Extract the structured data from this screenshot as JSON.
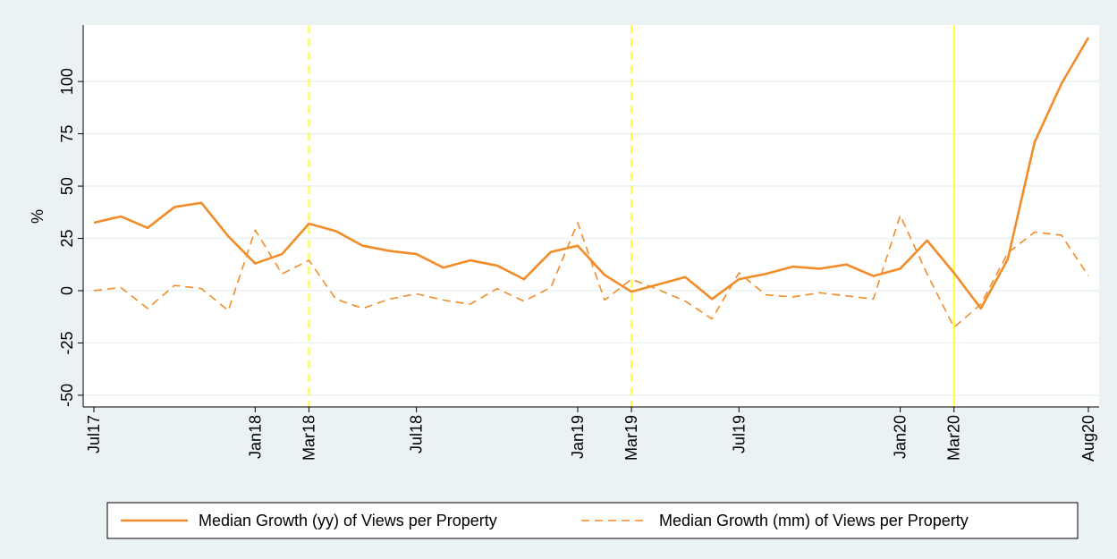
{
  "chart_data": {
    "type": "line",
    "y_label": "%",
    "categories": [
      "Jul17",
      null,
      null,
      null,
      null,
      null,
      "Jan18",
      null,
      "Mar18",
      null,
      null,
      null,
      "Jul18",
      null,
      null,
      null,
      null,
      null,
      "Jan19",
      null,
      "Mar19",
      null,
      null,
      null,
      "Jul19",
      null,
      null,
      null,
      null,
      null,
      "Jan20",
      null,
      "Mar20",
      null,
      null,
      null,
      null,
      "Aug20"
    ],
    "series": [
      {
        "name": "Median Growth (yy) of Views per Property",
        "color": "#f28c28",
        "dash": false,
        "values": [
          32.5,
          35.5,
          30,
          40,
          42,
          26,
          13,
          17.5,
          32,
          28.5,
          21.5,
          19,
          17.5,
          11,
          14.5,
          12,
          5.5,
          18.5,
          21.5,
          7.5,
          -0.5,
          3,
          6.5,
          -4,
          5.5,
          8,
          11.5,
          10.5,
          12.5,
          7,
          10.5,
          24,
          8.5,
          -8.5,
          15,
          71,
          99,
          121
        ]
      },
      {
        "name": "Median Growth (mm) of Views per Property",
        "color": "#f28c28",
        "dash": true,
        "values": [
          0,
          1.5,
          -8.5,
          2.5,
          1,
          -9.5,
          29,
          8,
          14.5,
          -4,
          -8.5,
          -4,
          -1.5,
          -4.5,
          -6.5,
          1,
          -5,
          1.5,
          32.5,
          -4.5,
          5.5,
          0.5,
          -5,
          -13.5,
          8.5,
          -2,
          -3,
          -1,
          -2.5,
          -4,
          36,
          8,
          -17.5,
          -6.5,
          18,
          28,
          26.5,
          7
        ]
      }
    ],
    "ylim": [
      -55.6,
      127
    ],
    "yticks": [
      -50,
      -25,
      0,
      25,
      50,
      75,
      100
    ],
    "grid": true,
    "reference_lines": [
      {
        "at": "Mar18",
        "dash": true,
        "color": "#ffff33"
      },
      {
        "at": "Mar19",
        "dash": true,
        "color": "#ffff33"
      },
      {
        "at": "Mar20",
        "dash": false,
        "color": "#ffff33"
      }
    ],
    "legend": "bottom"
  }
}
